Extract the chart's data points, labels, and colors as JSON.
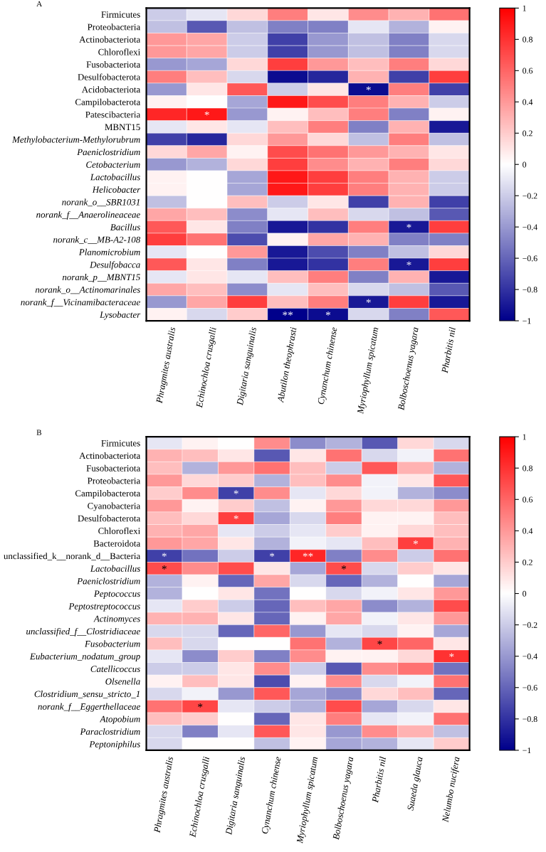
{
  "chart_data": [
    {
      "type": "heatmap",
      "title": "A",
      "categories": [
        "Phragmites australis",
        "Echinochloa crusgalli",
        "Digitaria sanguinalis",
        "Abutilon theophrasti",
        "Cynanchum chinense",
        "Myriophyllum spicatum",
        "Bolboschoenus yagara",
        "Pharbitis nil"
      ],
      "y_categories": [
        "Firmicutes",
        "Proteobacteria",
        "Actinobacteriota",
        "Chloroflexi",
        "Fusobacteriota",
        "Desulfobacterota",
        "Acidobacteriota",
        "Campilobacterota",
        "Patescibacteria",
        "MBNT15",
        "Methylobacterium-Methylorubrum",
        "Paeniclostridium",
        "Cetobacterium",
        "Lactobacillus",
        "Helicobacter",
        "norank_o__SBR1031",
        "norank_f__Anaerolineaceae",
        "Bacillus",
        "norank_c__MB-A2-108",
        "Planomicrobium",
        "Desulfobacca",
        "norank_p__MBNT15",
        "norank_o__Actinomarinales",
        "norank_f__Vicinamibacteraceae",
        "Lysobacter"
      ],
      "cells": [
        [
          -0.2,
          -0.1,
          0.15,
          0.5,
          0.1,
          0.45,
          0.3,
          0.55
        ],
        [
          -0.25,
          -0.65,
          -0.25,
          -0.5,
          -0.5,
          -0.1,
          -0.3,
          0.05
        ],
        [
          0.4,
          0.35,
          -0.2,
          -0.75,
          -0.4,
          -0.25,
          -0.5,
          -0.15
        ],
        [
          0.4,
          0.35,
          -0.2,
          -0.75,
          -0.4,
          -0.25,
          -0.5,
          -0.15
        ],
        [
          -0.4,
          -0.35,
          0.15,
          0.75,
          0.4,
          0.25,
          0.5,
          0.15
        ],
        [
          0.5,
          0.25,
          -0.15,
          -0.95,
          -0.85,
          0.3,
          -0.75,
          0.75
        ],
        [
          -0.4,
          0.1,
          0.65,
          -0.2,
          0.1,
          -0.95,
          0.5,
          -0.75
        ],
        [
          0.05,
          0,
          -0.35,
          0.9,
          0.7,
          0.5,
          0.3,
          -0.2
        ],
        [
          0.85,
          0.9,
          -0.4,
          0.05,
          0.25,
          0.5,
          -0.5,
          0.05
        ],
        [
          -0.1,
          0.1,
          -0.1,
          0.25,
          0.5,
          -0.5,
          0.3,
          -0.9
        ],
        [
          -0.75,
          -0.85,
          0.15,
          0.4,
          0.15,
          -0.25,
          0.5,
          -0.25
        ],
        [
          0.15,
          0.35,
          0.05,
          0.7,
          0.55,
          0.4,
          0.3,
          0.1
        ],
        [
          -0.4,
          -0.3,
          0.15,
          0.75,
          0.45,
          0.3,
          0.5,
          0.15
        ],
        [
          0.05,
          0,
          -0.35,
          0.9,
          0.75,
          0.5,
          0.3,
          -0.2
        ],
        [
          0.05,
          0,
          -0.35,
          0.9,
          0.75,
          0.5,
          0.3,
          -0.2
        ],
        [
          -0.25,
          0,
          0.25,
          -0.2,
          0.1,
          -0.75,
          0.3,
          -0.75
        ],
        [
          0.35,
          0.25,
          -0.45,
          -0.1,
          0.25,
          -0.15,
          -0.25,
          -0.65
        ],
        [
          0.65,
          0.1,
          -0.5,
          -0.9,
          -0.8,
          0.5,
          -0.9,
          0.75
        ],
        [
          0.75,
          0.55,
          -0.7,
          0.05,
          0.35,
          0.3,
          -0.5,
          -0.5
        ],
        [
          -0.1,
          0,
          0.4,
          -0.9,
          -0.7,
          -0.5,
          -0.25,
          0.15
        ],
        [
          0.65,
          0.1,
          -0.5,
          -0.9,
          -0.8,
          0.5,
          -0.9,
          0.75
        ],
        [
          -0.1,
          0.1,
          -0.1,
          0.25,
          0.5,
          -0.5,
          0.3,
          -0.9
        ],
        [
          0.35,
          0.25,
          -0.45,
          -0.1,
          0.25,
          -0.15,
          -0.25,
          -0.65
        ],
        [
          -0.4,
          0.35,
          0.75,
          0.25,
          0.5,
          -0.9,
          0.75,
          -0.9
        ],
        [
          0.05,
          -0.15,
          0.2,
          -1,
          -0.95,
          -0.15,
          -0.5,
          0.65
        ]
      ],
      "cell_labels": [
        [
          null,
          null,
          null,
          null,
          null,
          null,
          null,
          null
        ],
        [
          null,
          null,
          null,
          null,
          null,
          null,
          null,
          null
        ],
        [
          null,
          null,
          null,
          null,
          null,
          null,
          null,
          null
        ],
        [
          null,
          null,
          null,
          null,
          null,
          null,
          null,
          null
        ],
        [
          null,
          null,
          null,
          null,
          null,
          null,
          null,
          null
        ],
        [
          null,
          null,
          null,
          null,
          null,
          null,
          null,
          null
        ],
        [
          null,
          null,
          null,
          null,
          null,
          "*",
          null,
          null
        ],
        [
          null,
          null,
          null,
          null,
          null,
          null,
          null,
          null
        ],
        [
          null,
          "*",
          null,
          null,
          null,
          null,
          null,
          null
        ],
        [
          null,
          null,
          null,
          null,
          null,
          null,
          null,
          null
        ],
        [
          null,
          null,
          null,
          null,
          null,
          null,
          null,
          null
        ],
        [
          null,
          null,
          null,
          null,
          null,
          null,
          null,
          null
        ],
        [
          null,
          null,
          null,
          null,
          null,
          null,
          null,
          null
        ],
        [
          null,
          null,
          null,
          null,
          null,
          null,
          null,
          null
        ],
        [
          null,
          null,
          null,
          null,
          null,
          null,
          null,
          null
        ],
        [
          null,
          null,
          null,
          null,
          null,
          null,
          null,
          null
        ],
        [
          null,
          null,
          null,
          null,
          null,
          null,
          null,
          null
        ],
        [
          null,
          null,
          null,
          null,
          null,
          null,
          "*",
          null
        ],
        [
          null,
          null,
          null,
          null,
          null,
          null,
          null,
          null
        ],
        [
          null,
          null,
          null,
          null,
          null,
          null,
          null,
          null
        ],
        [
          null,
          null,
          null,
          null,
          null,
          null,
          "*",
          null
        ],
        [
          null,
          null,
          null,
          null,
          null,
          null,
          null,
          null
        ],
        [
          null,
          null,
          null,
          null,
          null,
          null,
          null,
          null
        ],
        [
          null,
          null,
          null,
          null,
          null,
          "*",
          null,
          null
        ],
        [
          null,
          null,
          null,
          "**",
          "*",
          null,
          null,
          null
        ]
      ],
      "clim": [
        -1,
        1
      ],
      "cticks": [
        -1,
        -0.8,
        -0.6,
        -0.4,
        -0.2,
        0,
        0.2,
        0.4,
        0.6,
        0.8,
        1
      ],
      "colors": [
        "#00008b",
        "#ffffff",
        "#ff0000"
      ]
    },
    {
      "type": "heatmap",
      "title": "B",
      "categories": [
        "Phragmites australis",
        "Echinochloa crusgalli",
        "Digitaria sanguinalis",
        "Cynanchum chinense",
        "Myriophyllum spicatum",
        "Bolboschoenus yagara",
        "Pharbitis nil",
        "Suaeda glauca",
        "Nelumbo nucifera"
      ],
      "y_categories": [
        "Firmicutes",
        "Actinobacteriota",
        "Fusobacteriota",
        "Proteobacteria",
        "Campilobacterota",
        "Cyanobacteria",
        "Desulfobacterota",
        "Chloroflexi",
        "Bacteroidota",
        "unclassified_k__norank_d__Bacteria",
        "Lactobacillus",
        "Paeniclostridium",
        "Peptococcus",
        "Peptostreptococcus",
        "Actinomyces",
        "unclassified_f__Clostridiaceae",
        "Fusobacterium",
        "Eubacterium_nodatum_group",
        "Catellicoccus",
        "Olsenella",
        "Clostridium_sensu_stricto_1",
        "norank_f__Eggerthellaceae",
        "Atopobium",
        "Paraclostridium",
        "Peptoniphilus"
      ],
      "cells": [
        [
          -0.1,
          0.05,
          0,
          0.45,
          -0.45,
          -0.3,
          -0.65,
          0.15,
          -0.15
        ],
        [
          0.3,
          0.25,
          0.1,
          -0.65,
          0.1,
          0.55,
          -0.15,
          -0.05,
          0.55
        ],
        [
          0.25,
          -0.3,
          0.4,
          0.55,
          0.25,
          -0.2,
          0.65,
          0.3,
          -0.3
        ],
        [
          0.4,
          0.15,
          0.2,
          -0.3,
          0.25,
          0.45,
          -0.05,
          0.1,
          0.65
        ],
        [
          0.2,
          0.45,
          -0.75,
          0.45,
          -0.1,
          0.15,
          -0.05,
          -0.3,
          -0.45
        ],
        [
          0.4,
          0.05,
          0.2,
          -0.25,
          0.05,
          0.4,
          0.15,
          0.15,
          0.4
        ],
        [
          0.25,
          0.15,
          0.75,
          -0.35,
          -0.15,
          0.5,
          0.05,
          0.05,
          0.25
        ],
        [
          0.3,
          0.35,
          -0.1,
          -0.2,
          -0.1,
          0.2,
          0.05,
          0.15,
          0.25
        ],
        [
          0.4,
          0.35,
          0.1,
          -0.3,
          -0.05,
          -0.1,
          0.25,
          0.75,
          0.3
        ],
        [
          -0.75,
          -0.55,
          -0.2,
          -0.75,
          0.85,
          -0.5,
          0.45,
          -0.2,
          0.55
        ],
        [
          0.7,
          0.45,
          0.7,
          0.1,
          -0.35,
          0.7,
          -0.15,
          0.2,
          0.1
        ],
        [
          -0.3,
          0.05,
          -0.6,
          0.35,
          -0.15,
          -0.6,
          -0.3,
          0,
          -0.35
        ],
        [
          -0.3,
          0,
          0.1,
          -0.55,
          0,
          -0.15,
          -0.05,
          0.1,
          0.4
        ],
        [
          -0.1,
          0.2,
          -0.2,
          -0.6,
          0.25,
          0.35,
          -0.45,
          -0.3,
          0.7
        ],
        [
          0.3,
          0.3,
          0.1,
          -0.6,
          0.05,
          0.35,
          -0.05,
          0.1,
          0.4
        ],
        [
          -0.15,
          -0.15,
          -0.6,
          0.6,
          -0.4,
          -0.1,
          -0.15,
          0.05,
          -0.35
        ],
        [
          0.25,
          -0.15,
          0,
          0,
          0.55,
          -0.3,
          0.72,
          0.6,
          0.1
        ],
        [
          -0.1,
          -0.45,
          0.2,
          -0.5,
          0.45,
          0.05,
          0.05,
          0.15,
          0.8
        ],
        [
          -0.2,
          -0.2,
          0.1,
          0.45,
          -0.2,
          -0.65,
          0.45,
          0.55,
          -0.55
        ],
        [
          0.05,
          0.25,
          0.1,
          -0.7,
          0.05,
          0.45,
          -0.15,
          -0.05,
          0.55
        ],
        [
          -0.15,
          -0.05,
          -0.4,
          0.65,
          -0.35,
          -0.45,
          0.15,
          0.25,
          -0.6
        ],
        [
          0.55,
          0.72,
          -0.1,
          -0.2,
          -0.3,
          0.7,
          -0.35,
          -0.15,
          0.1
        ],
        [
          0.25,
          0.2,
          0,
          -0.6,
          0.1,
          0.5,
          -0.1,
          -0.05,
          0.55
        ],
        [
          -0.15,
          -0.5,
          -0.1,
          0.65,
          0.1,
          -0.4,
          0.45,
          0.3,
          -0.25
        ],
        [
          -0.15,
          0,
          0,
          -0.25,
          0.05,
          -0.35,
          -0.3,
          -0.1,
          0.2
        ]
      ],
      "cell_labels": [
        [
          null,
          null,
          null,
          null,
          null,
          null,
          null,
          null,
          null
        ],
        [
          null,
          null,
          null,
          null,
          null,
          null,
          null,
          null,
          null
        ],
        [
          null,
          null,
          null,
          null,
          null,
          null,
          null,
          null,
          null
        ],
        [
          null,
          null,
          null,
          null,
          null,
          null,
          null,
          null,
          null
        ],
        [
          null,
          null,
          "*",
          null,
          null,
          null,
          null,
          null,
          null
        ],
        [
          null,
          null,
          null,
          null,
          null,
          null,
          null,
          null,
          null
        ],
        [
          null,
          null,
          "*",
          null,
          null,
          null,
          null,
          null,
          null
        ],
        [
          null,
          null,
          null,
          null,
          null,
          null,
          null,
          null,
          null
        ],
        [
          null,
          null,
          null,
          null,
          null,
          null,
          null,
          "*",
          null
        ],
        [
          "*",
          null,
          null,
          "*",
          "**",
          null,
          null,
          null,
          null
        ],
        [
          "*",
          null,
          null,
          null,
          null,
          "*",
          null,
          null,
          null
        ],
        [
          null,
          null,
          null,
          null,
          null,
          null,
          null,
          null,
          null
        ],
        [
          null,
          null,
          null,
          null,
          null,
          null,
          null,
          null,
          null
        ],
        [
          null,
          null,
          null,
          null,
          null,
          null,
          null,
          null,
          null
        ],
        [
          null,
          null,
          null,
          null,
          null,
          null,
          null,
          null,
          null
        ],
        [
          null,
          null,
          null,
          null,
          null,
          null,
          null,
          null,
          null
        ],
        [
          null,
          null,
          null,
          null,
          null,
          null,
          "*",
          null,
          null
        ],
        [
          null,
          null,
          null,
          null,
          null,
          null,
          null,
          null,
          "*"
        ],
        [
          null,
          null,
          null,
          null,
          null,
          null,
          null,
          null,
          null
        ],
        [
          null,
          null,
          null,
          null,
          null,
          null,
          null,
          null,
          null
        ],
        [
          null,
          null,
          null,
          null,
          null,
          null,
          null,
          null,
          null
        ],
        [
          null,
          "*",
          null,
          null,
          null,
          null,
          null,
          null,
          null
        ],
        [
          null,
          null,
          null,
          null,
          null,
          null,
          null,
          null,
          null
        ],
        [
          null,
          null,
          null,
          null,
          null,
          null,
          null,
          null,
          null
        ],
        [
          null,
          null,
          null,
          null,
          null,
          null,
          null,
          null,
          null
        ]
      ],
      "clim": [
        -1,
        1
      ],
      "cticks": [
        -1,
        -0.8,
        -0.6,
        -0.4,
        -0.2,
        0,
        0.2,
        0.4,
        0.6,
        0.8,
        1
      ],
      "colors": [
        "#00008b",
        "#ffffff",
        "#ff0000"
      ]
    }
  ]
}
